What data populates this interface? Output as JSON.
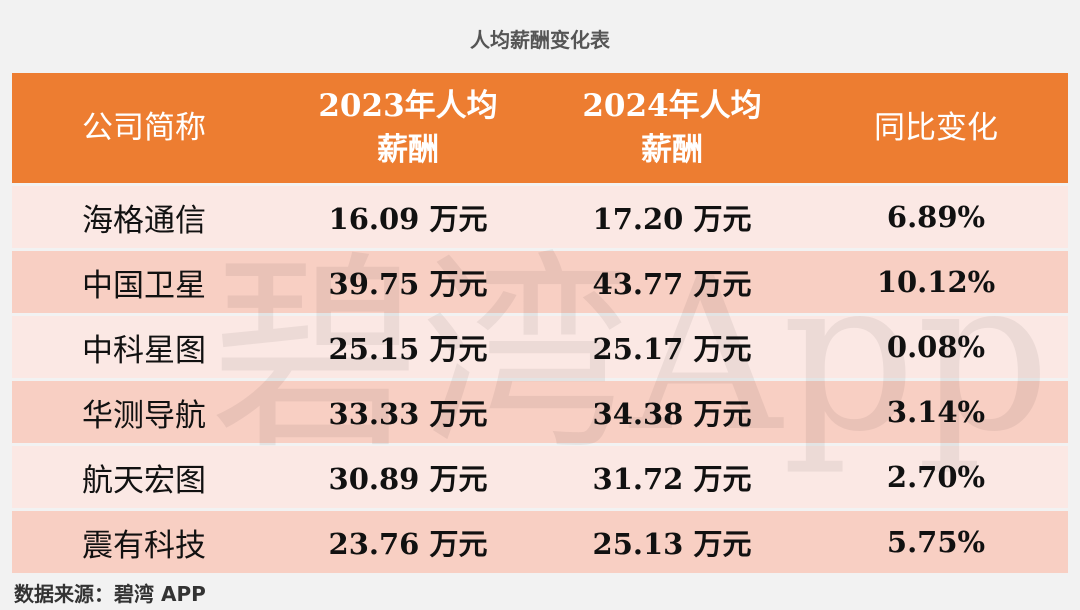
{
  "title": "人均薪酬变化表",
  "table": {
    "header": [
      "公司简称",
      "2023年人均薪酬",
      "2024年人均薪酬",
      "同比变化"
    ],
    "rows": [
      [
        "海格通信",
        "16.09 万元",
        "17.20 万元",
        "6.89%"
      ],
      [
        "中国卫星",
        "39.75 万元",
        "43.77 万元",
        "10.12%"
      ],
      [
        "中科星图",
        "25.15 万元",
        "25.17 万元",
        "0.08%"
      ],
      [
        "华测导航",
        "33.33 万元",
        "34.38 万元",
        "3.14%"
      ],
      [
        "航天宏图",
        "30.89 万元",
        "31.72 万元",
        "2.70%"
      ],
      [
        "震有科技",
        "23.76 万元",
        "25.13 万元",
        "5.75%"
      ]
    ]
  },
  "watermark": "碧湾App",
  "source": "数据来源：碧湾 APP"
}
